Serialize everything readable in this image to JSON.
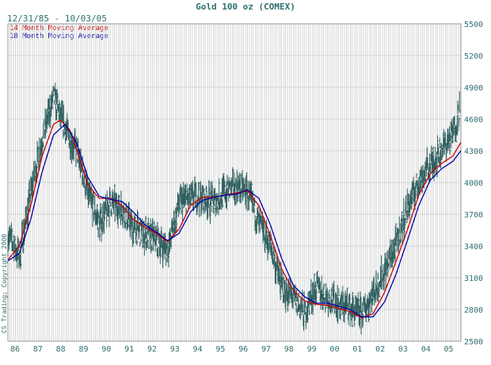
{
  "header": {
    "title": "Gold 100 oz (COMEX)",
    "date_range": "12/31/85 - 10/03/05"
  },
  "legend": [
    {
      "label": "14 Month Moving Average",
      "color": "#cc0000"
    },
    {
      "label": "18 Month Moving Average",
      "color": "#0000aa"
    }
  ],
  "copyright": "CS Trading; Copyright 2000",
  "colors": {
    "price_bars": "#2f5f5f",
    "grid": "#bbbbbb",
    "text": "#2f6f6f",
    "ma14": "#cc0000",
    "ma18": "#0000aa"
  },
  "chart_data": {
    "type": "line",
    "title": "Gold 100 oz (COMEX)",
    "x_tick_labels": [
      "86",
      "87",
      "88",
      "89",
      "90",
      "91",
      "92",
      "93",
      "94",
      "95",
      "96",
      "97",
      "98",
      "99",
      "00",
      "01",
      "02",
      "03",
      "04",
      "05"
    ],
    "y_tick_labels": [
      "2500",
      "2800",
      "3100",
      "3400",
      "3700",
      "4000",
      "4300",
      "4600",
      "4900",
      "5200",
      "5500"
    ],
    "ylim": [
      2500,
      5500
    ],
    "xlim": [
      1986.0,
      2005.85
    ],
    "grid": true,
    "legend_position": "top-left",
    "price_path": [
      [
        1986.0,
        3500
      ],
      [
        1986.5,
        3300
      ],
      [
        1987.0,
        3900
      ],
      [
        1987.5,
        4400
      ],
      [
        1988.0,
        4800
      ],
      [
        1988.5,
        4500
      ],
      [
        1989.0,
        4300
      ],
      [
        1989.5,
        3900
      ],
      [
        1990.0,
        3600
      ],
      [
        1990.5,
        3800
      ],
      [
        1991.0,
        3750
      ],
      [
        1991.5,
        3550
      ],
      [
        1992.0,
        3500
      ],
      [
        1992.5,
        3450
      ],
      [
        1993.0,
        3350
      ],
      [
        1993.5,
        3800
      ],
      [
        1994.0,
        3850
      ],
      [
        1994.5,
        3850
      ],
      [
        1995.0,
        3800
      ],
      [
        1995.5,
        3900
      ],
      [
        1996.0,
        3950
      ],
      [
        1996.5,
        3900
      ],
      [
        1997.0,
        3600
      ],
      [
        1997.5,
        3400
      ],
      [
        1998.0,
        3000
      ],
      [
        1998.5,
        2900
      ],
      [
        1999.0,
        2750
      ],
      [
        1999.5,
        3000
      ],
      [
        2000.0,
        2900
      ],
      [
        2000.5,
        2850
      ],
      [
        2001.0,
        2800
      ],
      [
        2001.5,
        2750
      ],
      [
        2002.0,
        2950
      ],
      [
        2002.5,
        3150
      ],
      [
        2003.0,
        3400
      ],
      [
        2003.5,
        3750
      ],
      [
        2004.0,
        4000
      ],
      [
        2004.5,
        4150
      ],
      [
        2005.0,
        4300
      ],
      [
        2005.5,
        4450
      ],
      [
        2005.8,
        4700
      ]
    ],
    "series": [
      {
        "name": "14 Month Moving Average",
        "color": "#cc0000",
        "points": [
          [
            1986.0,
            3270
          ],
          [
            1986.5,
            3400
          ],
          [
            1987.0,
            3780
          ],
          [
            1987.5,
            4250
          ],
          [
            1988.0,
            4550
          ],
          [
            1988.3,
            4590
          ],
          [
            1988.7,
            4500
          ],
          [
            1989.0,
            4320
          ],
          [
            1989.5,
            3980
          ],
          [
            1990.0,
            3850
          ],
          [
            1990.5,
            3850
          ],
          [
            1991.0,
            3780
          ],
          [
            1991.5,
            3650
          ],
          [
            1992.0,
            3580
          ],
          [
            1992.5,
            3520
          ],
          [
            1993.0,
            3440
          ],
          [
            1993.5,
            3560
          ],
          [
            1994.0,
            3780
          ],
          [
            1994.5,
            3860
          ],
          [
            1995.0,
            3860
          ],
          [
            1995.5,
            3880
          ],
          [
            1996.0,
            3900
          ],
          [
            1996.5,
            3920
          ],
          [
            1997.0,
            3780
          ],
          [
            1997.5,
            3500
          ],
          [
            1998.0,
            3180
          ],
          [
            1998.5,
            2980
          ],
          [
            1999.0,
            2880
          ],
          [
            1999.5,
            2850
          ],
          [
            2000.0,
            2840
          ],
          [
            2000.5,
            2810
          ],
          [
            2001.0,
            2780
          ],
          [
            2001.5,
            2720
          ],
          [
            2002.0,
            2760
          ],
          [
            2002.5,
            2960
          ],
          [
            2003.0,
            3250
          ],
          [
            2003.5,
            3550
          ],
          [
            2004.0,
            3880
          ],
          [
            2004.5,
            4080
          ],
          [
            2005.0,
            4180
          ],
          [
            2005.5,
            4250
          ],
          [
            2005.85,
            4380
          ]
        ]
      },
      {
        "name": "18 Month Moving Average",
        "color": "#0000aa",
        "points": [
          [
            1986.0,
            3260
          ],
          [
            1986.5,
            3330
          ],
          [
            1987.0,
            3650
          ],
          [
            1987.5,
            4100
          ],
          [
            1988.0,
            4450
          ],
          [
            1988.5,
            4550
          ],
          [
            1989.0,
            4380
          ],
          [
            1989.5,
            4050
          ],
          [
            1990.0,
            3870
          ],
          [
            1990.5,
            3840
          ],
          [
            1991.0,
            3820
          ],
          [
            1991.5,
            3720
          ],
          [
            1992.0,
            3600
          ],
          [
            1992.5,
            3530
          ],
          [
            1993.0,
            3450
          ],
          [
            1993.5,
            3520
          ],
          [
            1994.0,
            3720
          ],
          [
            1994.5,
            3830
          ],
          [
            1995.0,
            3860
          ],
          [
            1995.5,
            3880
          ],
          [
            1996.0,
            3890
          ],
          [
            1996.5,
            3930
          ],
          [
            1997.0,
            3850
          ],
          [
            1997.5,
            3600
          ],
          [
            1998.0,
            3280
          ],
          [
            1998.5,
            3030
          ],
          [
            1999.0,
            2920
          ],
          [
            1999.5,
            2860
          ],
          [
            2000.0,
            2860
          ],
          [
            2000.5,
            2830
          ],
          [
            2001.0,
            2800
          ],
          [
            2001.5,
            2730
          ],
          [
            2002.0,
            2730
          ],
          [
            2002.5,
            2870
          ],
          [
            2003.0,
            3130
          ],
          [
            2003.5,
            3450
          ],
          [
            2004.0,
            3780
          ],
          [
            2004.5,
            4020
          ],
          [
            2005.0,
            4130
          ],
          [
            2005.5,
            4200
          ],
          [
            2005.85,
            4300
          ]
        ]
      }
    ]
  }
}
